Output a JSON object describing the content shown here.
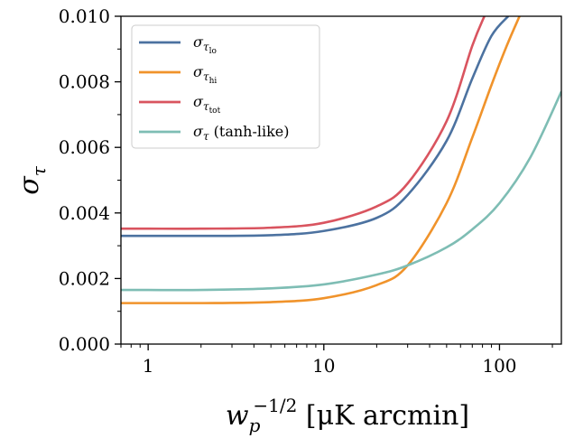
{
  "chart_data": {
    "type": "line",
    "xscale": "log",
    "xlim": [
      0.7,
      225
    ],
    "ylim": [
      0.0,
      0.01
    ],
    "xlabel": {
      "base": "w",
      "sub": "p",
      "sup": "−1/2",
      "units": "[μK arcmin]"
    },
    "ylabel": {
      "base": "σ",
      "sub": "τ"
    },
    "x_ticks": [
      {
        "value": 1,
        "label": "1"
      },
      {
        "value": 10,
        "label": "10"
      },
      {
        "value": 100,
        "label": "100"
      }
    ],
    "y_ticks": [
      {
        "value": 0.0,
        "label": "0.000"
      },
      {
        "value": 0.002,
        "label": "0.002"
      },
      {
        "value": 0.004,
        "label": "0.004"
      },
      {
        "value": 0.006,
        "label": "0.006"
      },
      {
        "value": 0.008,
        "label": "0.008"
      },
      {
        "value": 0.01,
        "label": "0.010"
      }
    ],
    "legend_position": "top-left",
    "grid": false,
    "series": [
      {
        "name": {
          "base": "σ",
          "sub": "τ",
          "subsub": "lo",
          "extra": ""
        },
        "color": "#4c72a0",
        "x": [
          0.7,
          1,
          2,
          5,
          10,
          20,
          30,
          50,
          70,
          90,
          112
        ],
        "y": [
          0.0033,
          0.0033,
          0.0033,
          0.00332,
          0.00345,
          0.00385,
          0.00455,
          0.0062,
          0.0081,
          0.0094,
          0.01
        ]
      },
      {
        "name": {
          "base": "σ",
          "sub": "τ",
          "subsub": "hi",
          "extra": ""
        },
        "color": "#f0932b",
        "x": [
          0.7,
          1,
          2,
          5,
          10,
          20,
          30,
          50,
          70,
          90,
          110,
          130
        ],
        "y": [
          0.00125,
          0.00125,
          0.00125,
          0.00128,
          0.0014,
          0.0018,
          0.0024,
          0.0043,
          0.0063,
          0.0079,
          0.0091,
          0.01
        ]
      },
      {
        "name": {
          "base": "σ",
          "sub": "τ",
          "subsub": "tot",
          "extra": ""
        },
        "color": "#d9545f",
        "x": [
          0.7,
          1,
          2,
          5,
          10,
          20,
          30,
          50,
          70,
          82
        ],
        "y": [
          0.00352,
          0.00352,
          0.00352,
          0.00355,
          0.0037,
          0.0042,
          0.0049,
          0.0068,
          0.0091,
          0.01
        ]
      },
      {
        "name": {
          "base": "σ",
          "sub": "τ",
          "subsub": "",
          "extra": " (tanh-like)"
        },
        "color": "#7ebdb4",
        "x": [
          0.7,
          1,
          2,
          5,
          10,
          20,
          30,
          50,
          70,
          100,
          150,
          225
        ],
        "y": [
          0.00165,
          0.00165,
          0.00165,
          0.0017,
          0.00182,
          0.00212,
          0.0024,
          0.00295,
          0.0035,
          0.0043,
          0.0057,
          0.0077
        ]
      }
    ]
  }
}
